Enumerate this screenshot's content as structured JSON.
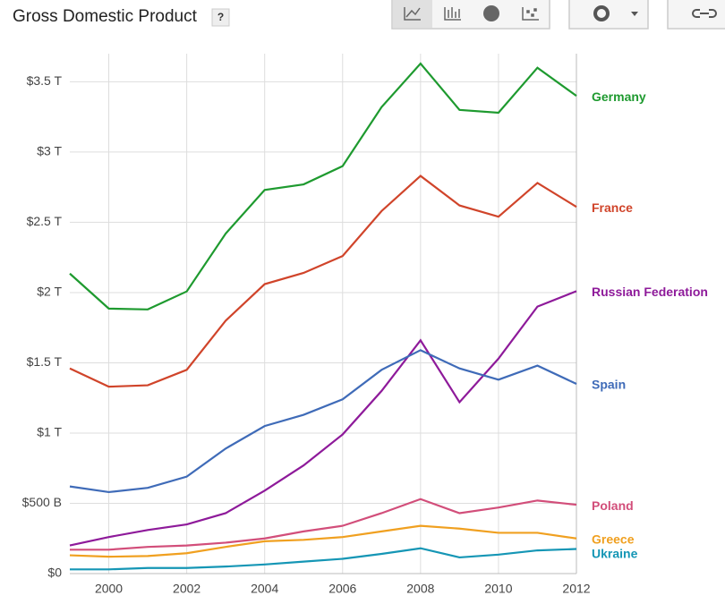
{
  "header": {
    "help": "?"
  },
  "chart_data": {
    "type": "line",
    "title": "Gross Domestic Product",
    "x": [
      1999,
      2000,
      2001,
      2002,
      2003,
      2004,
      2005,
      2006,
      2007,
      2008,
      2009,
      2010,
      2011,
      2012
    ],
    "xlim": [
      1999,
      2012
    ],
    "xticks": [
      2000,
      2002,
      2004,
      2006,
      2008,
      2010,
      2012
    ],
    "ylim": [
      0,
      3700000000000.0
    ],
    "yticks": [
      {
        "value": 0,
        "label": "$0"
      },
      {
        "value": 500000000000.0,
        "label": "$500 B"
      },
      {
        "value": 1000000000000.0,
        "label": "$1 T"
      },
      {
        "value": 1500000000000.0,
        "label": "$1.5 T"
      },
      {
        "value": 2000000000000.0,
        "label": "$2 T"
      },
      {
        "value": 2500000000000.0,
        "label": "$2.5 T"
      },
      {
        "value": 3000000000000.0,
        "label": "$3 T"
      },
      {
        "value": 3500000000000.0,
        "label": "$3.5 T"
      }
    ],
    "grid": true,
    "series": [
      {
        "name": "Germany",
        "color": "#1e9a2f",
        "values": [
          2135000000000.0,
          1886000000000.0,
          1880000000000.0,
          2008000000000.0,
          2420000000000.0,
          2730000000000.0,
          2770000000000.0,
          2900000000000.0,
          3320000000000.0,
          3630000000000.0,
          3300000000000.0,
          3280000000000.0,
          3600000000000.0,
          3400000000000.0
        ]
      },
      {
        "name": "France",
        "color": "#d0442a",
        "values": [
          1460000000000.0,
          1330000000000.0,
          1340000000000.0,
          1450000000000.0,
          1800000000000.0,
          2060000000000.0,
          2140000000000.0,
          2260000000000.0,
          2580000000000.0,
          2830000000000.0,
          2620000000000.0,
          2540000000000.0,
          2780000000000.0,
          2610000000000.0
        ]
      },
      {
        "name": "Russian Federation",
        "color": "#8e1a9a",
        "values": [
          200000000000.0,
          260000000000.0,
          310000000000.0,
          350000000000.0,
          430000000000.0,
          590000000000.0,
          770000000000.0,
          990000000000.0,
          1300000000000.0,
          1660000000000.0,
          1220000000000.0,
          1530000000000.0,
          1900000000000.0,
          2010000000000.0
        ]
      },
      {
        "name": "Spain",
        "color": "#3f6bb8",
        "values": [
          620000000000.0,
          580000000000.0,
          610000000000.0,
          690000000000.0,
          890000000000.0,
          1050000000000.0,
          1130000000000.0,
          1240000000000.0,
          1450000000000.0,
          1590000000000.0,
          1460000000000.0,
          1380000000000.0,
          1480000000000.0,
          1350000000000.0
        ]
      },
      {
        "name": "Poland",
        "color": "#d24e7a",
        "values": [
          170000000000.0,
          170000000000.0,
          190000000000.0,
          200000000000.0,
          220000000000.0,
          250000000000.0,
          300000000000.0,
          340000000000.0,
          430000000000.0,
          530000000000.0,
          430000000000.0,
          470000000000.0,
          520000000000.0,
          490000000000.0
        ]
      },
      {
        "name": "Greece",
        "color": "#f0a020",
        "values": [
          130000000000.0,
          120000000000.0,
          125000000000.0,
          145000000000.0,
          190000000000.0,
          230000000000.0,
          240000000000.0,
          260000000000.0,
          300000000000.0,
          340000000000.0,
          320000000000.0,
          290000000000.0,
          290000000000.0,
          250000000000.0
        ]
      },
      {
        "name": "Ukraine",
        "color": "#1596b5",
        "values": [
          30000000000.0,
          30000000000.0,
          40000000000.0,
          40000000000.0,
          50000000000.0,
          65000000000.0,
          85000000000.0,
          105000000000.0,
          140000000000.0,
          180000000000.0,
          115000000000.0,
          135000000000.0,
          165000000000.0,
          175000000000.0
        ]
      }
    ]
  }
}
